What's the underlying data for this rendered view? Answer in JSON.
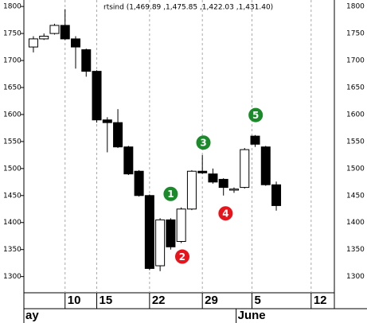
{
  "chart_data": {
    "type": "candlestick",
    "title": "rtsind (1,469.89 ,1,475.85 ,1,422.03 ,1,431.40)",
    "x": [
      0,
      1,
      2,
      3,
      4,
      5,
      6,
      7,
      8,
      9,
      10,
      11,
      12,
      13,
      14,
      15,
      16,
      17,
      18,
      19,
      20,
      21,
      22,
      23
    ],
    "open": [
      1725,
      1740,
      1750,
      1765,
      1740,
      1720,
      1680,
      1590,
      1585,
      1540,
      1495,
      1450,
      1320,
      1405,
      1365,
      1425,
      1495,
      1490,
      1480,
      1460,
      1465,
      1560,
      1540,
      1469.89
    ],
    "high": [
      1745,
      1750,
      1768,
      1795,
      1745,
      1722,
      1682,
      1595,
      1610,
      1542,
      1497,
      1452,
      1408,
      1408,
      1428,
      1497,
      1525,
      1500,
      1482,
      1465,
      1538,
      1562,
      1542,
      1475.85
    ],
    "low": [
      1715,
      1738,
      1748,
      1738,
      1685,
      1670,
      1585,
      1530,
      1538,
      1488,
      1448,
      1312,
      1310,
      1350,
      1362,
      1423,
      1490,
      1472,
      1450,
      1455,
      1463,
      1540,
      1468,
      1422.03
    ],
    "close": [
      1740,
      1745,
      1765,
      1740,
      1725,
      1680,
      1590,
      1585,
      1540,
      1490,
      1450,
      1315,
      1405,
      1355,
      1425,
      1495,
      1492,
      1475,
      1465,
      1462,
      1535,
      1545,
      1470,
      1431.4
    ],
    "up_color": "#ffffff",
    "down_color": "#000000",
    "xlim": [
      -0.9,
      28.5
    ],
    "ylim": [
      1270,
      1812
    ],
    "yticks": [
      1300,
      1350,
      1400,
      1450,
      1500,
      1550,
      1600,
      1650,
      1700,
      1750,
      1800
    ],
    "xticks": [
      {
        "value": 3,
        "label": "10"
      },
      {
        "value": 6,
        "label": "15"
      },
      {
        "value": 11,
        "label": "22"
      },
      {
        "value": 16,
        "label": "29"
      },
      {
        "value": 20.7,
        "label": "5"
      },
      {
        "value": 26.3,
        "label": "12"
      }
    ],
    "month_labels": [
      {
        "value": -0.9,
        "label": "ay"
      },
      {
        "value": 19.2,
        "label": "June"
      }
    ],
    "annotations": [
      {
        "x": 13,
        "y": 1453,
        "label": "1",
        "color": "#1a8a2a"
      },
      {
        "x": 14.1,
        "y": 1337,
        "label": "2",
        "color": "#e8141c"
      },
      {
        "x": 16.1,
        "y": 1548,
        "label": "3",
        "color": "#1a8a2a"
      },
      {
        "x": 18.2,
        "y": 1417,
        "label": "4",
        "color": "#e8141c"
      },
      {
        "x": 21.05,
        "y": 1599,
        "label": "5",
        "color": "#1a8a2a"
      }
    ],
    "grid": true
  }
}
